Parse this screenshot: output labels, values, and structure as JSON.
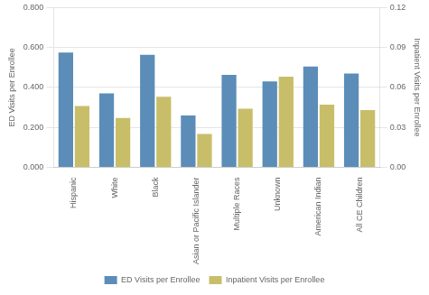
{
  "chart_data": {
    "type": "bar",
    "categories": [
      "Hispanic",
      "White",
      "Black",
      "Asian or Pacific Islander",
      "Multiple Races",
      "Unknown",
      "American Indian",
      "All CE Children"
    ],
    "series": [
      {
        "name": "ED Visits per Enrollee",
        "color": "#5B8DB8",
        "values": [
          0.575,
          0.37,
          0.563,
          0.26,
          0.463,
          0.43,
          0.505,
          0.47
        ]
      },
      {
        "name": "Inpatient Visits per Enrollee",
        "color": "#C8BE6A",
        "values": [
          0.046,
          0.037,
          0.053,
          0.025,
          0.044,
          0.068,
          0.047,
          0.043
        ],
        "axis": "y2"
      }
    ],
    "ylabel": "ED Visits per Enrollee",
    "y2label": "Inpatient Visits per Enrollee",
    "ylim": [
      0.0,
      0.8
    ],
    "yticks": [
      {
        "value": 0.0,
        "label": "0.000"
      },
      {
        "value": 0.2,
        "label": "0.200"
      },
      {
        "value": 0.4,
        "label": "0.400"
      },
      {
        "value": 0.6,
        "label": "0.600"
      },
      {
        "value": 0.8,
        "label": "0.800"
      }
    ],
    "y2lim": [
      0.0,
      0.12
    ],
    "y2ticks": [
      {
        "value": 0.0,
        "label": "0.00"
      },
      0.03,
      0.06,
      0.09,
      0.12
    ],
    "grid": true,
    "legend": "bottom"
  }
}
